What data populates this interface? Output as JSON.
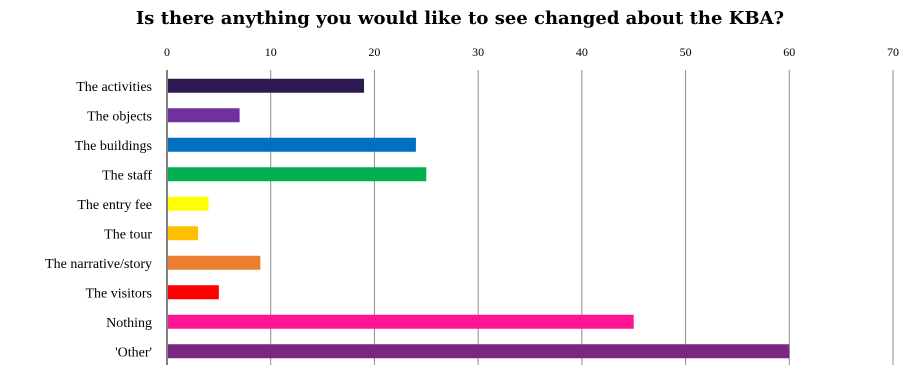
{
  "chart_data": {
    "type": "bar",
    "orientation": "horizontal",
    "title": "Is there anything you would like to see changed about the KBA?",
    "xlabel": "",
    "ylabel": "",
    "xlim": [
      0,
      70
    ],
    "x_ticks": [
      0,
      10,
      20,
      30,
      40,
      50,
      60,
      70
    ],
    "x_axis_position": "top",
    "grid": true,
    "legend": "none",
    "categories": [
      "The activities",
      "The objects",
      "The buildings",
      "The staff",
      "The entry fee",
      "The tour",
      "The narrative/story",
      "The visitors",
      "Nothing",
      "'Other'"
    ],
    "values": [
      19,
      7,
      24,
      25,
      4,
      3,
      9,
      5,
      45,
      60
    ],
    "colors": [
      "#2e1a52",
      "#7030a0",
      "#0070c0",
      "#00b050",
      "#ffff00",
      "#ffc000",
      "#ed7d31",
      "#ff0000",
      "#ff1493",
      "#7b2680"
    ],
    "gridline_color": "#8c8c8c",
    "axis_color": "#000000"
  }
}
